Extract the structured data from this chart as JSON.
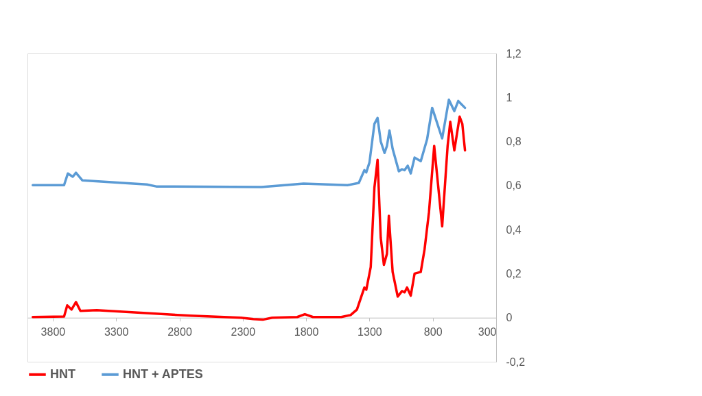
{
  "chart_data": {
    "type": "line",
    "xlim": [
      4000,
      300
    ],
    "xticks": [
      3800,
      3300,
      2800,
      2300,
      1800,
      1300,
      800,
      300
    ],
    "ylim": [
      -0.2,
      1.2
    ],
    "yticks": [
      {
        "value": -0.2,
        "label": "-0,2"
      },
      {
        "value": 0,
        "label": "0"
      },
      {
        "value": 0.2,
        "label": "0,2"
      },
      {
        "value": 0.4,
        "label": "0,4"
      },
      {
        "value": 0.6,
        "label": "0,6"
      },
      {
        "value": 0.8,
        "label": "0,8"
      },
      {
        "value": 1,
        "label": "1"
      },
      {
        "value": 1.2,
        "label": "1,2"
      }
    ],
    "grid": false,
    "legend": "bottom",
    "marker": "none",
    "line_style": "solid",
    "series": [
      {
        "name": "HNT",
        "color": "#ff0000",
        "x": [
          3958,
          3711,
          3686,
          3652,
          3617,
          3582,
          3453,
          2711,
          2315,
          2216,
          2142,
          2068,
          1870,
          1810,
          1746,
          1523,
          1449,
          1399,
          1340,
          1325,
          1290,
          1261,
          1236,
          1211,
          1186,
          1162,
          1147,
          1117,
          1077,
          1043,
          1023,
          1003,
          974,
          944,
          895,
          865,
          830,
          789,
          726,
          683,
          662,
          630,
          588,
          567,
          546
        ],
        "values": [
          0.003,
          0.005,
          0.056,
          0.037,
          0.071,
          0.031,
          0.034,
          0.009,
          0,
          -0.006,
          -0.009,
          0,
          0.003,
          0.016,
          0.003,
          0.003,
          0.012,
          0.037,
          0.137,
          0.127,
          0.23,
          0.59,
          0.717,
          0.363,
          0.24,
          0.29,
          0.463,
          0.208,
          0.096,
          0.121,
          0.115,
          0.137,
          0.1,
          0.2,
          0.208,
          0.31,
          0.48,
          0.78,
          0.415,
          0.78,
          0.89,
          0.76,
          0.913,
          0.88,
          0.76
        ]
      },
      {
        "name": "HNT + APTES",
        "color": "#5b9bd5",
        "x": [
          3958,
          3711,
          3681,
          3642,
          3617,
          3567,
          3057,
          2983,
          2152,
          1820,
          1473,
          1384,
          1340,
          1325,
          1300,
          1261,
          1236,
          1211,
          1181,
          1162,
          1142,
          1117,
          1068,
          1043,
          1023,
          998,
          974,
          944,
          895,
          845,
          805,
          726,
          673,
          630,
          599,
          546
        ],
        "values": [
          0.602,
          0.602,
          0.655,
          0.64,
          0.658,
          0.624,
          0.605,
          0.596,
          0.593,
          0.609,
          0.602,
          0.612,
          0.67,
          0.66,
          0.705,
          0.88,
          0.907,
          0.8,
          0.748,
          0.78,
          0.85,
          0.767,
          0.665,
          0.674,
          0.67,
          0.69,
          0.655,
          0.727,
          0.711,
          0.81,
          0.953,
          0.814,
          0.99,
          0.938,
          0.984,
          0.953
        ]
      }
    ]
  }
}
